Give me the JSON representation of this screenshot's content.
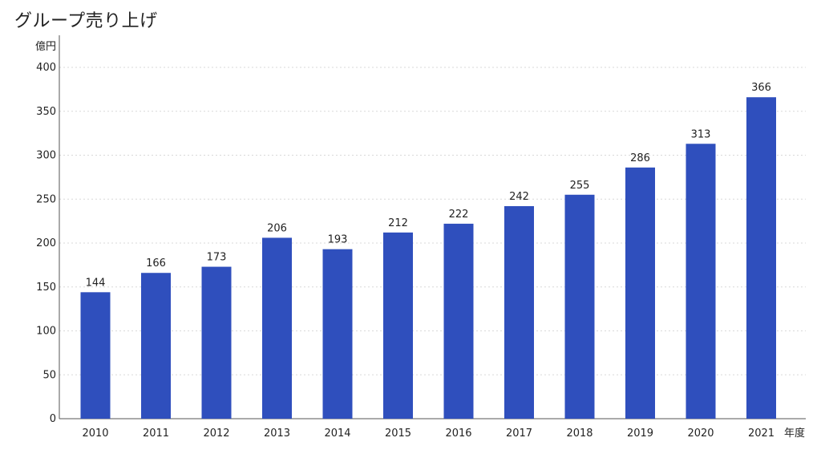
{
  "title": "グループ売り上げ",
  "colors": {
    "bar": "#2f4fbd",
    "grid": "#d9d9d9",
    "axis": "#555555",
    "text": "#222222"
  },
  "chart_data": {
    "type": "bar",
    "title": "グループ売り上げ",
    "ylabel": "億円",
    "xlabel": "年度",
    "categories": [
      "2010",
      "2011",
      "2012",
      "2013",
      "2014",
      "2015",
      "2016",
      "2017",
      "2018",
      "2019",
      "2020",
      "2021"
    ],
    "values": [
      144,
      166,
      173,
      206,
      193,
      212,
      222,
      242,
      255,
      286,
      313,
      366
    ],
    "ylim": [
      0,
      400
    ],
    "yticks": [
      0,
      50,
      100,
      150,
      200,
      250,
      300,
      350,
      400
    ],
    "grid": true,
    "data_labels": true
  }
}
